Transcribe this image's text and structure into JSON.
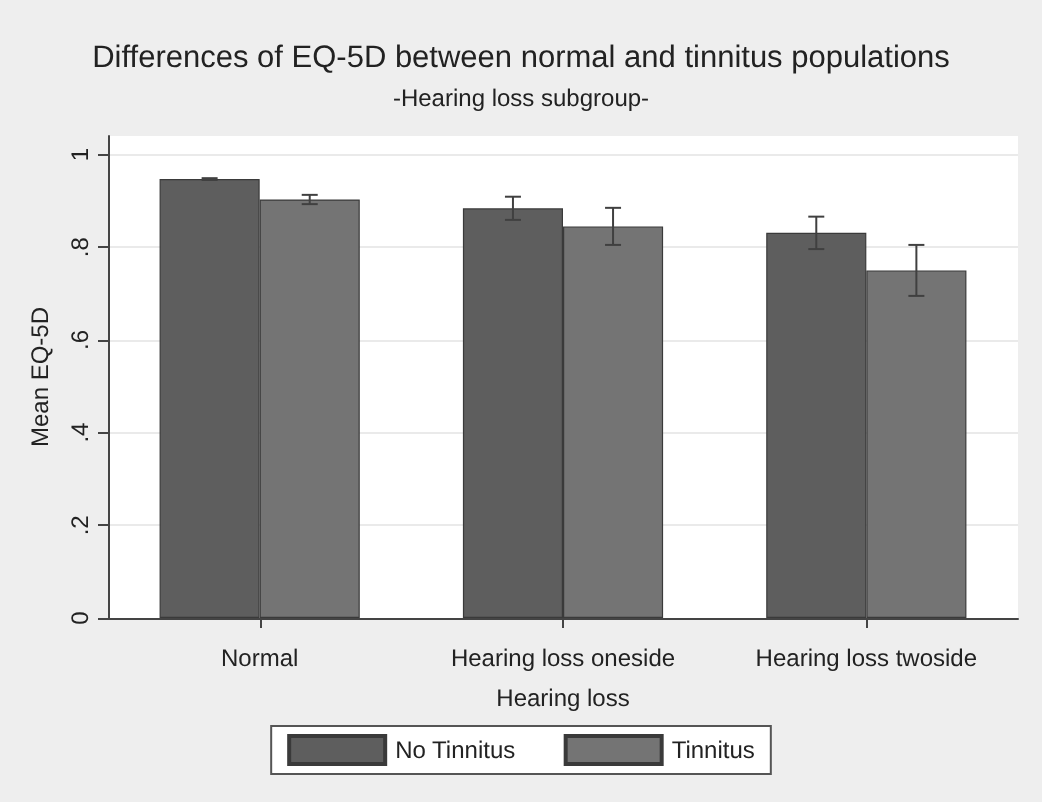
{
  "chart_data": {
    "type": "bar",
    "title": "Differences of EQ-5D between normal and tinnitus populations",
    "subtitle": "-Hearing loss subgroup-",
    "xlabel": "Hearing loss",
    "ylabel": "Mean EQ-5D",
    "categories": [
      "Normal",
      "Hearing loss oneside",
      "Hearing loss twoside"
    ],
    "series": [
      {
        "name": "No Tinnitus",
        "color": "#5e5e5e",
        "values": [
          0.947,
          0.884,
          0.831
        ],
        "errors": [
          0.002,
          0.025,
          0.035
        ]
      },
      {
        "name": "Tinnitus",
        "color": "#747474",
        "values": [
          0.903,
          0.845,
          0.75
        ],
        "errors": [
          0.01,
          0.04,
          0.055
        ]
      }
    ],
    "ylim": [
      0,
      1.04
    ],
    "yticks": [
      {
        "value": 0,
        "label": "0"
      },
      {
        "value": 0.2,
        "label": ".2"
      },
      {
        "value": 0.4,
        "label": ".4"
      },
      {
        "value": 0.6,
        "label": ".6"
      },
      {
        "value": 0.8,
        "label": ".8"
      },
      {
        "value": 1,
        "label": "1"
      }
    ],
    "grid": "y",
    "legend": "bottom"
  }
}
